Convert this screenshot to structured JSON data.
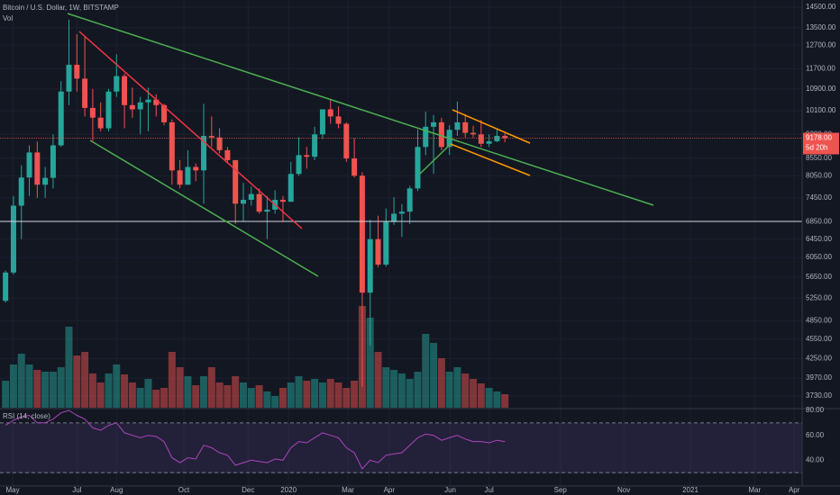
{
  "chart_data": [
    {
      "type": "candlestick",
      "title": "Bitcoin / U.S. Dollar, 1W, BITSTAMP",
      "log_scale": true,
      "up_color": "#26a69a",
      "down_color": "#ef5350",
      "ylim": [
        3580,
        14870
      ],
      "yticks": [
        {
          "value": 14500,
          "label": "14500.00"
        },
        {
          "value": 13500,
          "label": "13500.00"
        },
        {
          "value": 12700,
          "label": "12700.00"
        },
        {
          "value": 11700,
          "label": "11700.00"
        },
        {
          "value": 10900,
          "label": "10900.00"
        },
        {
          "value": 10100,
          "label": "10100.00"
        },
        {
          "value": 9300,
          "label": "9300.00"
        },
        {
          "value": 8550,
          "label": "8550.00"
        },
        {
          "value": 8050,
          "label": "8050.00"
        },
        {
          "value": 7450,
          "label": "7450.00"
        },
        {
          "value": 6850,
          "label": "6850.00"
        },
        {
          "value": 6450,
          "label": "6450.00"
        },
        {
          "value": 6050,
          "label": "6050.00"
        },
        {
          "value": 5650,
          "label": "5650.00"
        },
        {
          "value": 5250,
          "label": "5250.00"
        },
        {
          "value": 4850,
          "label": "4850.00"
        },
        {
          "value": 4550,
          "label": "4550.00"
        },
        {
          "value": 4250,
          "label": "4250.00"
        },
        {
          "value": 3970,
          "label": "3970.00"
        },
        {
          "value": 3730,
          "label": "3730.00"
        }
      ],
      "xlim": [
        -0.7,
        100.5
      ],
      "xticks": [
        {
          "value": 0.9,
          "label": "May"
        },
        {
          "value": 9,
          "label": "Jul"
        },
        {
          "value": 14,
          "label": "Aug"
        },
        {
          "value": 22.5,
          "label": "Oct"
        },
        {
          "value": 30.6,
          "label": "Dec"
        },
        {
          "value": 35.7,
          "label": "2020"
        },
        {
          "value": 43.2,
          "label": "Mar"
        },
        {
          "value": 48.4,
          "label": "Apr"
        },
        {
          "value": 56.1,
          "label": "Jun"
        },
        {
          "value": 61,
          "label": "Jul"
        },
        {
          "value": 70,
          "label": "Sep"
        },
        {
          "value": 78,
          "label": "Nov"
        },
        {
          "value": 86.4,
          "label": "2021"
        },
        {
          "value": 94.5,
          "label": "Mar"
        },
        {
          "value": 99.5,
          "label": "Apr"
        }
      ],
      "last_price": {
        "value": 9178,
        "label": "9178.00"
      },
      "countdown": "5d 20h",
      "ohlc": [
        [
          5200,
          5780,
          5170,
          5740
        ],
        [
          5740,
          7500,
          5700,
          7250
        ],
        [
          7250,
          8350,
          6450,
          8000
        ],
        [
          8000,
          8950,
          7500,
          8730
        ],
        [
          8730,
          9070,
          7450,
          7800
        ],
        [
          7800,
          8300,
          7450,
          7990
        ],
        [
          7990,
          9300,
          7700,
          8950
        ],
        [
          8950,
          11200,
          8900,
          10800
        ],
        [
          10800,
          13880,
          10300,
          11860
        ],
        [
          11860,
          13200,
          10800,
          11300
        ],
        [
          11300,
          13130,
          9900,
          10200
        ],
        [
          10200,
          10900,
          9100,
          9860
        ],
        [
          9860,
          10400,
          9400,
          9500
        ],
        [
          9500,
          10900,
          9400,
          10800
        ],
        [
          10800,
          12300,
          10600,
          11400
        ],
        [
          11400,
          11500,
          9500,
          10300
        ],
        [
          10300,
          10950,
          9850,
          10150
        ],
        [
          10150,
          10600,
          9300,
          10400
        ],
        [
          10400,
          10950,
          9400,
          10500
        ],
        [
          10500,
          10700,
          9900,
          10300
        ],
        [
          10300,
          10350,
          9600,
          9700
        ],
        [
          9700,
          9800,
          7800,
          8200
        ],
        [
          8200,
          8500,
          7700,
          7800
        ],
        [
          7800,
          8800,
          7800,
          8300
        ],
        [
          8300,
          8400,
          7900,
          8200
        ],
        [
          8200,
          10350,
          7300,
          9250
        ],
        [
          9250,
          9900,
          8900,
          9200
        ],
        [
          9200,
          9500,
          8700,
          8800
        ],
        [
          8800,
          8900,
          8400,
          8500
        ],
        [
          8500,
          8500,
          6800,
          7300
        ],
        [
          7300,
          7850,
          6850,
          7400
        ],
        [
          7400,
          7750,
          7250,
          7550
        ],
        [
          7550,
          7700,
          7050,
          7100
        ],
        [
          7100,
          7500,
          6450,
          7150
        ],
        [
          7150,
          7650,
          7050,
          7400
        ],
        [
          7400,
          7500,
          6850,
          7350
        ],
        [
          7350,
          8450,
          7350,
          8100
        ],
        [
          8100,
          9200,
          8050,
          8650
        ],
        [
          8650,
          8900,
          8250,
          8600
        ],
        [
          8600,
          9550,
          8500,
          9300
        ],
        [
          9300,
          10150,
          9150,
          10150
        ],
        [
          10150,
          10500,
          9650,
          9900
        ],
        [
          9900,
          10250,
          9500,
          9650
        ],
        [
          9650,
          9700,
          8450,
          8550
        ],
        [
          8550,
          9180,
          8000,
          8050
        ],
        [
          8050,
          8150,
          3850,
          5350
        ],
        [
          5350,
          6900,
          4450,
          6450
        ],
        [
          6450,
          7000,
          5850,
          5900
        ],
        [
          5900,
          7180,
          5860,
          6850
        ],
        [
          6850,
          7470,
          6780,
          7050
        ],
        [
          7050,
          7290,
          6500,
          7100
        ],
        [
          7100,
          7770,
          6800,
          7700
        ],
        [
          7700,
          9460,
          7630,
          8900
        ],
        [
          8900,
          10070,
          8650,
          9550
        ],
        [
          9550,
          9950,
          8100,
          9700
        ],
        [
          9700,
          9850,
          8800,
          8900
        ],
        [
          8900,
          9600,
          8650,
          9450
        ],
        [
          9450,
          10430,
          9250,
          9700
        ],
        [
          9700,
          9980,
          9200,
          9350
        ],
        [
          9350,
          9580,
          9200,
          9300
        ],
        [
          9300,
          9780,
          8900,
          9000
        ],
        [
          9000,
          9300,
          8900,
          9080
        ],
        [
          9080,
          9450,
          9050,
          9250
        ],
        [
          9250,
          9330,
          9050,
          9178
        ]
      ]
    },
    {
      "type": "bar",
      "title": "Vol",
      "values": [
        30,
        48,
        60,
        48,
        42,
        40,
        40,
        45,
        90,
        58,
        62,
        38,
        28,
        38,
        48,
        37,
        28,
        22,
        32,
        20,
        22,
        62,
        45,
        35,
        25,
        35,
        45,
        28,
        25,
        35,
        28,
        22,
        25,
        18,
        13,
        22,
        28,
        35,
        30,
        32,
        28,
        32,
        28,
        22,
        30,
        113,
        100,
        62,
        45,
        42,
        38,
        32,
        40,
        82,
        72,
        55,
        40,
        45,
        38,
        32,
        27,
        22,
        18,
        15
      ]
    },
    {
      "type": "line",
      "title": "RSI (14, close)",
      "color": "#ab47bc",
      "ylim": [
        19.3,
        80.7
      ],
      "yticks": [
        {
          "value": 80,
          "label": "80.00"
        },
        {
          "value": 60,
          "label": "60.00"
        },
        {
          "value": 40,
          "label": "40.00"
        }
      ],
      "bands": [
        70,
        30
      ],
      "values": [
        68,
        72,
        75,
        76,
        70,
        70,
        73,
        78,
        80,
        76,
        73,
        66,
        64,
        68,
        70,
        62,
        60,
        58,
        60,
        59,
        55,
        42,
        38,
        42,
        41,
        52,
        50,
        46,
        44,
        36,
        38,
        40,
        39,
        38,
        41,
        40,
        50,
        55,
        54,
        58,
        62,
        60,
        58,
        50,
        46,
        33,
        40,
        38,
        44,
        45,
        46,
        52,
        58,
        61,
        60,
        56,
        58,
        60,
        57,
        55,
        55,
        54,
        56,
        55
      ]
    }
  ]
}
